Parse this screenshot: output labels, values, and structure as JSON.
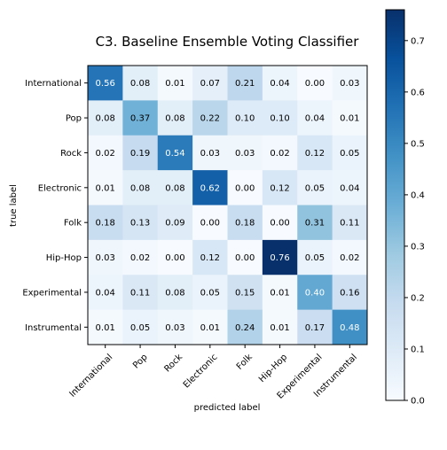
{
  "chart_data": {
    "type": "heatmap",
    "title": "C3. Baseline Ensemble Voting Classifier",
    "xlabel": "predicted label",
    "ylabel": "true label",
    "x_categories": [
      "International",
      "Pop",
      "Rock",
      "Electronic",
      "Folk",
      "Hip-Hop",
      "Experimental",
      "Instrumental"
    ],
    "y_categories": [
      "International",
      "Pop",
      "Rock",
      "Electronic",
      "Folk",
      "Hip-Hop",
      "Experimental",
      "Instrumental"
    ],
    "values": [
      [
        0.56,
        0.08,
        0.01,
        0.07,
        0.21,
        0.04,
        0.0,
        0.03
      ],
      [
        0.08,
        0.37,
        0.08,
        0.22,
        0.1,
        0.1,
        0.04,
        0.01
      ],
      [
        0.02,
        0.19,
        0.54,
        0.03,
        0.03,
        0.02,
        0.12,
        0.05
      ],
      [
        0.01,
        0.08,
        0.08,
        0.62,
        0.0,
        0.12,
        0.05,
        0.04
      ],
      [
        0.18,
        0.13,
        0.09,
        0.0,
        0.18,
        0.0,
        0.31,
        0.11
      ],
      [
        0.03,
        0.02,
        0.0,
        0.12,
        0.0,
        0.76,
        0.05,
        0.02
      ],
      [
        0.04,
        0.11,
        0.08,
        0.05,
        0.15,
        0.01,
        0.4,
        0.16
      ],
      [
        0.01,
        0.05,
        0.03,
        0.01,
        0.24,
        0.01,
        0.17,
        0.48
      ]
    ],
    "colormap": "Blues",
    "vmin": 0,
    "vmax": 0.76,
    "colorbar_ticks": [
      "0.0",
      "0.1",
      "0.2",
      "0.3",
      "0.4",
      "0.5",
      "0.6",
      "0.7"
    ],
    "grid": false,
    "legend": "none"
  }
}
